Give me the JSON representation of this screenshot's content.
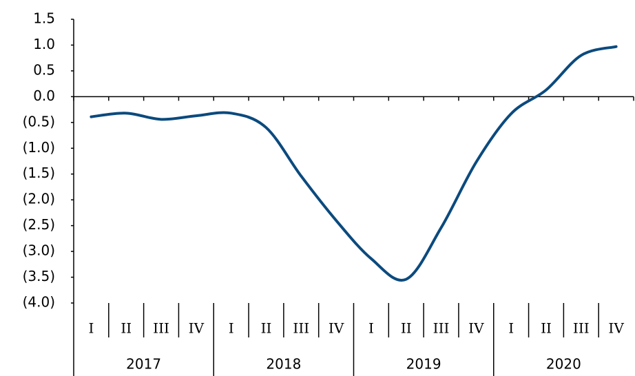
{
  "chart_data": {
    "type": "line",
    "categories": [
      "I",
      "II",
      "III",
      "IV",
      "I",
      "II",
      "III",
      "IV",
      "I",
      "II",
      "III",
      "IV",
      "I",
      "II",
      "III",
      "IV"
    ],
    "years": [
      "2017",
      "2018",
      "2019",
      "2020"
    ],
    "series": [
      {
        "color": "#0b4a7e",
        "values": [
          -0.39,
          -0.32,
          -0.44,
          -0.37,
          -0.32,
          -0.6,
          -1.54,
          -2.4,
          -3.14,
          -3.54,
          -2.54,
          -1.27,
          -0.33,
          0.13,
          0.8,
          0.97
        ]
      }
    ],
    "ylim": [
      -4,
      1.5
    ],
    "yticks": [
      1.5,
      {
        "value": 1,
        "label": "1.0"
      },
      0.5,
      {
        "value": 0,
        "label": "0.0"
      },
      {
        "value": -0.5,
        "label": "(0.5)"
      },
      {
        "value": -1,
        "label": "(1.0)"
      },
      {
        "value": -1.5,
        "label": "(1.5)"
      },
      {
        "value": -2,
        "label": "(2.0)"
      },
      {
        "value": -2.5,
        "label": "(2.5)"
      },
      {
        "value": -3,
        "label": "(3.0)"
      },
      {
        "value": -3.5,
        "label": "(3.5)"
      },
      {
        "value": -4,
        "label": "(4.0)"
      }
    ]
  }
}
